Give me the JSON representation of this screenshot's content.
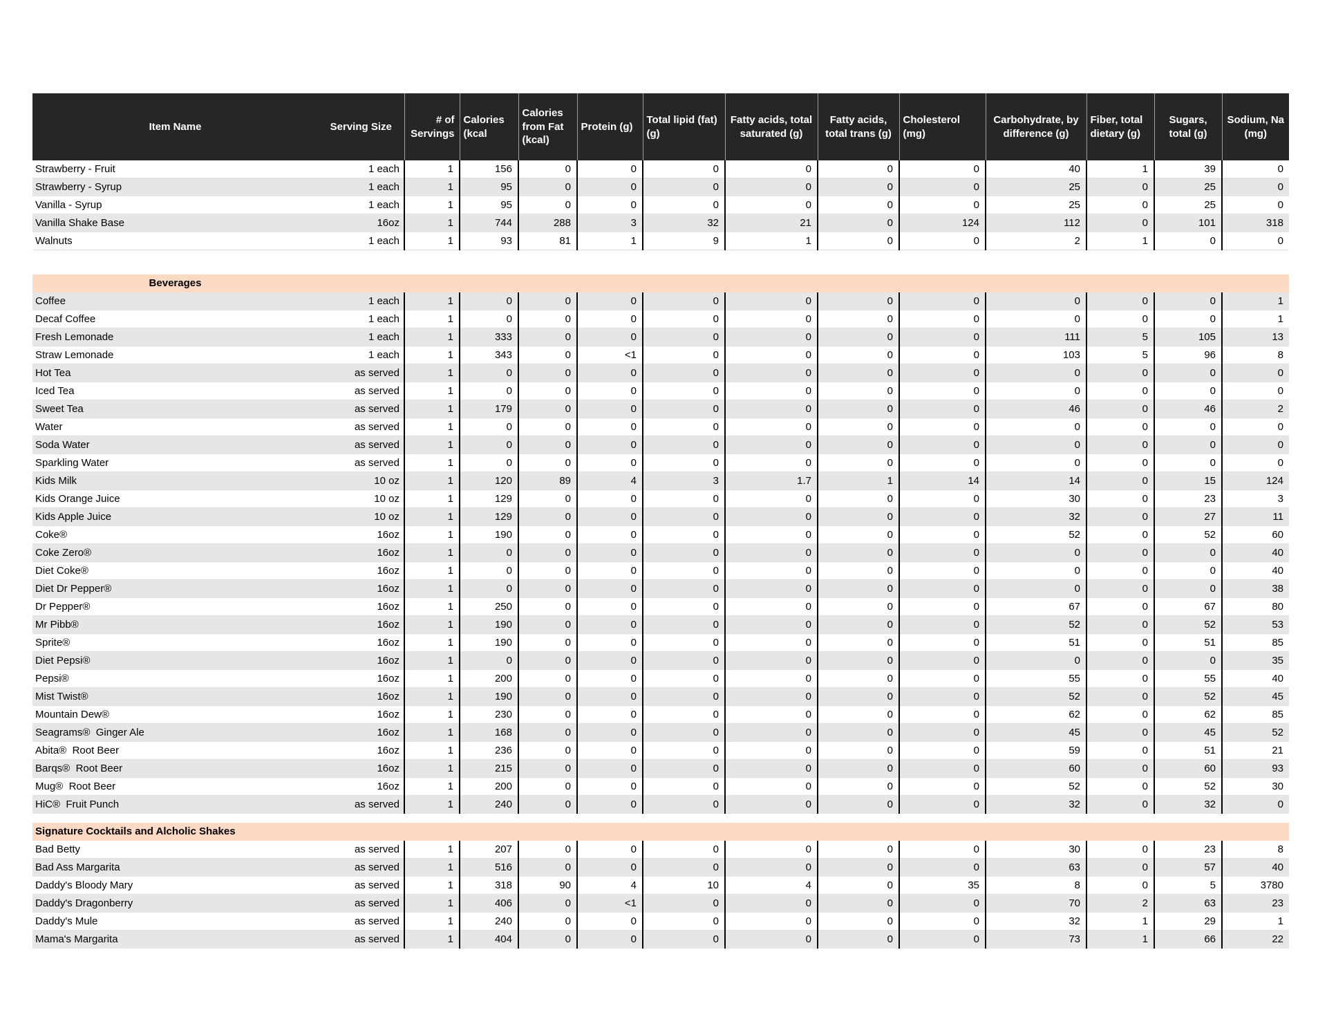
{
  "colors": {
    "header_bg": "#262626",
    "header_text": "#ffffff",
    "section_header_bg": "#fcd9c5",
    "row_stripe": "#e6e6e6",
    "grid_line": "#000000"
  },
  "table": {
    "columns": [
      {
        "label": "Item Name",
        "align": "center"
      },
      {
        "label": "Serving Size",
        "align": "center"
      },
      {
        "label": "# of Servings",
        "align": "right"
      },
      {
        "label": "Calories (kcal",
        "align": "left"
      },
      {
        "label": "Calories from Fat (kcal)",
        "align": "left"
      },
      {
        "label": "Protein (g)",
        "align": "left"
      },
      {
        "label": "Total lipid (fat) (g)",
        "align": "left"
      },
      {
        "label": "Fatty acids, total saturated (g)",
        "align": "center"
      },
      {
        "label": "Fatty acids, total trans (g)",
        "align": "center"
      },
      {
        "label": "Cholesterol (mg)",
        "align": "left"
      },
      {
        "label": "Carbohydrate, by difference (g)",
        "align": "center"
      },
      {
        "label": "Fiber, total dietary (g)",
        "align": "left"
      },
      {
        "label": "Sugars, total (g)",
        "align": "center"
      },
      {
        "label": "Sodium, Na (mg)",
        "align": "center"
      }
    ],
    "sections": [
      {
        "header": null,
        "rows": [
          {
            "name": "Strawberry - Fruit",
            "values": [
              "1 each",
              "1",
              "156",
              "0",
              "0",
              "0",
              "0",
              "0",
              "0",
              "40",
              "1",
              "39",
              "0"
            ]
          },
          {
            "name": "Strawberry - Syrup",
            "values": [
              "1 each",
              "1",
              "95",
              "0",
              "0",
              "0",
              "0",
              "0",
              "0",
              "25",
              "0",
              "25",
              "0"
            ]
          },
          {
            "name": "Vanilla - Syrup",
            "values": [
              "1 each",
              "1",
              "95",
              "0",
              "0",
              "0",
              "0",
              "0",
              "0",
              "25",
              "0",
              "25",
              "0"
            ]
          },
          {
            "name": "Vanilla Shake Base",
            "values": [
              "16oz",
              "1",
              "744",
              "288",
              "3",
              "32",
              "21",
              "0",
              "124",
              "112",
              "0",
              "101",
              "318"
            ]
          },
          {
            "name": "Walnuts",
            "values": [
              "1 each",
              "1",
              "93",
              "81",
              "1",
              "9",
              "1",
              "0",
              "0",
              "2",
              "1",
              "0",
              "0"
            ]
          }
        ]
      },
      {
        "header": {
          "label": "Beverages",
          "align": "center"
        },
        "rows": [
          {
            "name": "Coffee",
            "values": [
              "1 each",
              "1",
              "0",
              "0",
              "0",
              "0",
              "0",
              "0",
              "0",
              "0",
              "0",
              "0",
              "1"
            ]
          },
          {
            "name": "Decaf Coffee",
            "values": [
              "1 each",
              "1",
              "0",
              "0",
              "0",
              "0",
              "0",
              "0",
              "0",
              "0",
              "0",
              "0",
              "1"
            ]
          },
          {
            "name": "Fresh Lemonade",
            "values": [
              "1 each",
              "1",
              "333",
              "0",
              "0",
              "0",
              "0",
              "0",
              "0",
              "111",
              "5",
              "105",
              "13"
            ]
          },
          {
            "name": "Straw Lemonade",
            "values": [
              "1 each",
              "1",
              "343",
              "0",
              "<1",
              "0",
              "0",
              "0",
              "0",
              "103",
              "5",
              "96",
              "8"
            ]
          },
          {
            "name": "Hot Tea",
            "values": [
              "as served",
              "1",
              "0",
              "0",
              "0",
              "0",
              "0",
              "0",
              "0",
              "0",
              "0",
              "0",
              "0"
            ]
          },
          {
            "name": "Iced Tea",
            "values": [
              "as served",
              "1",
              "0",
              "0",
              "0",
              "0",
              "0",
              "0",
              "0",
              "0",
              "0",
              "0",
              "0"
            ]
          },
          {
            "name": "Sweet Tea",
            "values": [
              "as served",
              "1",
              "179",
              "0",
              "0",
              "0",
              "0",
              "0",
              "0",
              "46",
              "0",
              "46",
              "2"
            ]
          },
          {
            "name": "Water",
            "values": [
              "as served",
              "1",
              "0",
              "0",
              "0",
              "0",
              "0",
              "0",
              "0",
              "0",
              "0",
              "0",
              "0"
            ]
          },
          {
            "name": "Soda Water",
            "values": [
              "as served",
              "1",
              "0",
              "0",
              "0",
              "0",
              "0",
              "0",
              "0",
              "0",
              "0",
              "0",
              "0"
            ]
          },
          {
            "name": "Sparkling Water",
            "values": [
              "as served",
              "1",
              "0",
              "0",
              "0",
              "0",
              "0",
              "0",
              "0",
              "0",
              "0",
              "0",
              "0"
            ]
          },
          {
            "name": "Kids Milk",
            "values": [
              "10 oz",
              "1",
              "120",
              "89",
              "4",
              "3",
              "1.7",
              "1",
              "14",
              "14",
              "0",
              "15",
              "124"
            ]
          },
          {
            "name": "Kids Orange Juice",
            "values": [
              "10 oz",
              "1",
              "129",
              "0",
              "0",
              "0",
              "0",
              "0",
              "0",
              "30",
              "0",
              "23",
              "3"
            ]
          },
          {
            "name": "Kids Apple Juice",
            "values": [
              "10 oz",
              "1",
              "129",
              "0",
              "0",
              "0",
              "0",
              "0",
              "0",
              "32",
              "0",
              "27",
              "11"
            ]
          },
          {
            "name": "Coke®",
            "values": [
              "16oz",
              "1",
              "190",
              "0",
              "0",
              "0",
              "0",
              "0",
              "0",
              "52",
              "0",
              "52",
              "60"
            ]
          },
          {
            "name": "Coke Zero®",
            "values": [
              "16oz",
              "1",
              "0",
              "0",
              "0",
              "0",
              "0",
              "0",
              "0",
              "0",
              "0",
              "0",
              "40"
            ]
          },
          {
            "name": "Diet Coke®",
            "values": [
              "16oz",
              "1",
              "0",
              "0",
              "0",
              "0",
              "0",
              "0",
              "0",
              "0",
              "0",
              "0",
              "40"
            ]
          },
          {
            "name": "Diet Dr Pepper®",
            "values": [
              "16oz",
              "1",
              "0",
              "0",
              "0",
              "0",
              "0",
              "0",
              "0",
              "0",
              "0",
              "0",
              "38"
            ]
          },
          {
            "name": "Dr Pepper®",
            "values": [
              "16oz",
              "1",
              "250",
              "0",
              "0",
              "0",
              "0",
              "0",
              "0",
              "67",
              "0",
              "67",
              "80"
            ]
          },
          {
            "name": "Mr Pibb®",
            "values": [
              "16oz",
              "1",
              "190",
              "0",
              "0",
              "0",
              "0",
              "0",
              "0",
              "52",
              "0",
              "52",
              "53"
            ]
          },
          {
            "name": "Sprite®",
            "values": [
              "16oz",
              "1",
              "190",
              "0",
              "0",
              "0",
              "0",
              "0",
              "0",
              "51",
              "0",
              "51",
              "85"
            ]
          },
          {
            "name": "Diet Pepsi®",
            "values": [
              "16oz",
              "1",
              "0",
              "0",
              "0",
              "0",
              "0",
              "0",
              "0",
              "0",
              "0",
              "0",
              "35"
            ]
          },
          {
            "name": "Pepsi®",
            "values": [
              "16oz",
              "1",
              "200",
              "0",
              "0",
              "0",
              "0",
              "0",
              "0",
              "55",
              "0",
              "55",
              "40"
            ]
          },
          {
            "name": "Mist Twist®",
            "values": [
              "16oz",
              "1",
              "190",
              "0",
              "0",
              "0",
              "0",
              "0",
              "0",
              "52",
              "0",
              "52",
              "45"
            ]
          },
          {
            "name": "Mountain Dew®",
            "values": [
              "16oz",
              "1",
              "230",
              "0",
              "0",
              "0",
              "0",
              "0",
              "0",
              "62",
              "0",
              "62",
              "85"
            ]
          },
          {
            "name": "Seagrams®  Ginger Ale",
            "values": [
              "16oz",
              "1",
              "168",
              "0",
              "0",
              "0",
              "0",
              "0",
              "0",
              "45",
              "0",
              "45",
              "52"
            ]
          },
          {
            "name": "Abita®  Root Beer",
            "values": [
              "16oz",
              "1",
              "236",
              "0",
              "0",
              "0",
              "0",
              "0",
              "0",
              "59",
              "0",
              "51",
              "21"
            ]
          },
          {
            "name": "Barqs®  Root Beer",
            "values": [
              "16oz",
              "1",
              "215",
              "0",
              "0",
              "0",
              "0",
              "0",
              "0",
              "60",
              "0",
              "60",
              "93"
            ]
          },
          {
            "name": "Mug®  Root Beer",
            "values": [
              "16oz",
              "1",
              "200",
              "0",
              "0",
              "0",
              "0",
              "0",
              "0",
              "52",
              "0",
              "52",
              "30"
            ]
          },
          {
            "name": "HiC®  Fruit Punch",
            "values": [
              "as served",
              "1",
              "240",
              "0",
              "0",
              "0",
              "0",
              "0",
              "0",
              "32",
              "0",
              "32",
              "0"
            ]
          }
        ]
      },
      {
        "header": {
          "label": "Signature Cocktails and Alcholic Shakes",
          "align": "left"
        },
        "rows": [
          {
            "name": "Bad Betty",
            "values": [
              "as served",
              "1",
              "207",
              "0",
              "0",
              "0",
              "0",
              "0",
              "0",
              "30",
              "0",
              "23",
              "8"
            ]
          },
          {
            "name": "Bad Ass Margarita",
            "values": [
              "as served",
              "1",
              "516",
              "0",
              "0",
              "0",
              "0",
              "0",
              "0",
              "63",
              "0",
              "57",
              "40"
            ]
          },
          {
            "name": "Daddy's Bloody Mary",
            "values": [
              "as served",
              "1",
              "318",
              "90",
              "4",
              "10",
              "4",
              "0",
              "35",
              "8",
              "0",
              "5",
              "3780"
            ]
          },
          {
            "name": "Daddy's Dragonberry",
            "values": [
              "as served",
              "1",
              "406",
              "0",
              "<1",
              "0",
              "0",
              "0",
              "0",
              "70",
              "2",
              "63",
              "23"
            ]
          },
          {
            "name": "Daddy's Mule",
            "values": [
              "as served",
              "1",
              "240",
              "0",
              "0",
              "0",
              "0",
              "0",
              "0",
              "32",
              "1",
              "29",
              "1"
            ]
          },
          {
            "name": "Mama's Margarita",
            "values": [
              "as served",
              "1",
              "404",
              "0",
              "0",
              "0",
              "0",
              "0",
              "0",
              "73",
              "1",
              "66",
              "22"
            ]
          }
        ]
      }
    ]
  }
}
